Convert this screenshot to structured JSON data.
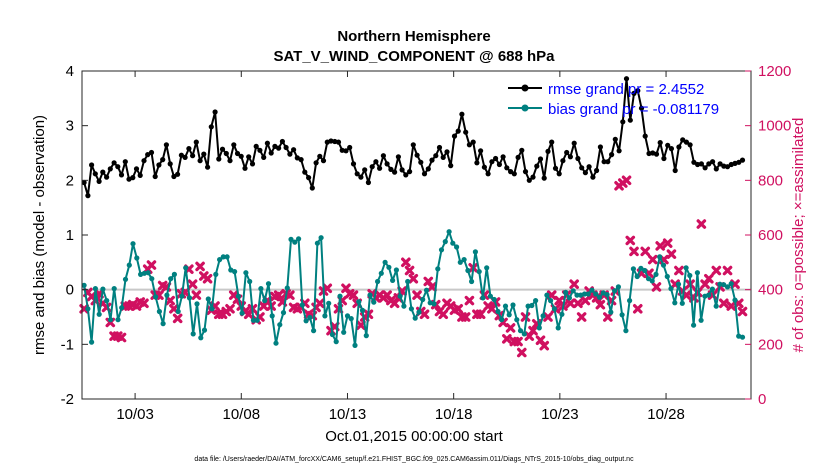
{
  "chart_data": {
    "type": "line",
    "title": "Northern Hemisphere",
    "subtitle": "SAT_V_WIND_COMPONENT @ 688 hPa",
    "xlabel": "Oct.01,2015 00:00:00 start",
    "ylabel_left": "rmse and bias (model - observation)",
    "ylabel_right": "# of obs: o=possible; ×=assimilated",
    "footer": "data file: /Users/raeder/DAI/ATM_forcXX/CAM6_setup/f.e21.FHIST_BGC.f09_025.CAM6assim.011/Diags_NTrS_2015-10/obs_diag_output.nc",
    "xlim": [
      0.5,
      32.0
    ],
    "ylim_left": [
      -2,
      4
    ],
    "ylim_right": [
      0,
      1200
    ],
    "x_ticks": [
      3,
      8,
      13,
      18,
      23,
      28
    ],
    "x_tick_labels": [
      "10/03",
      "10/08",
      "10/13",
      "10/18",
      "10/23",
      "10/28"
    ],
    "y_ticks_left": [
      -2,
      -1,
      0,
      1,
      2,
      3,
      4
    ],
    "y_ticks_right": [
      0,
      200,
      400,
      600,
      800,
      1000,
      1200
    ],
    "zero_line": 0,
    "legend": {
      "position": "top-right",
      "entries": [
        "rmse grand pr = 2.4552",
        "bias grand pr = -0.081179"
      ]
    },
    "series": [
      {
        "name": "rmse",
        "axis": "left",
        "color": "#000000",
        "marker": "circle",
        "values": [
          1.96,
          1.72,
          2.28,
          2.12,
          1.98,
          2.15,
          2.06,
          2.21,
          2.32,
          2.25,
          2.1,
          2.34,
          2.02,
          2.05,
          2.21,
          2.09,
          2.36,
          2.47,
          2.51,
          2.07,
          2.28,
          2.38,
          2.65,
          2.3,
          2.07,
          2.11,
          2.46,
          2.42,
          2.58,
          2.45,
          2.7,
          2.36,
          2.48,
          2.24,
          2.98,
          3.25,
          2.39,
          2.57,
          2.49,
          2.36,
          2.65,
          2.49,
          2.44,
          2.22,
          2.43,
          2.3,
          2.62,
          2.55,
          2.42,
          2.68,
          2.5,
          2.62,
          2.59,
          2.71,
          2.6,
          2.48,
          2.56,
          2.41,
          2.38,
          2.15,
          2.05,
          1.86,
          2.32,
          2.44,
          2.36,
          2.7,
          2.72,
          2.71,
          2.7,
          2.55,
          2.54,
          2.6,
          2.3,
          2.12,
          2.06,
          2.19,
          1.96,
          2.25,
          2.34,
          2.22,
          2.45,
          2.3,
          2.2,
          2.15,
          2.43,
          2.19,
          2.1,
          2.16,
          2.65,
          2.46,
          2.33,
          2.12,
          2.21,
          2.37,
          2.45,
          2.6,
          2.42,
          2.52,
          2.27,
          2.81,
          2.9,
          3.21,
          2.88,
          2.65,
          2.7,
          2.32,
          2.54,
          2.24,
          2.12,
          2.34,
          2.4,
          2.29,
          2.43,
          2.23,
          2.16,
          2.12,
          2.42,
          2.55,
          2.16,
          2.0,
          2.06,
          2.26,
          2.39,
          2.04,
          2.53,
          2.7,
          2.22,
          2.12,
          2.36,
          2.51,
          2.43,
          2.68,
          2.4,
          2.23,
          2.14,
          2.25,
          2.06,
          2.18,
          2.61,
          2.34,
          2.34,
          2.47,
          2.75,
          2.54,
          3.07,
          3.86,
          3.1,
          3.59,
          3.64,
          3.32,
          2.81,
          2.49,
          2.5,
          2.48,
          2.69,
          2.4,
          2.64,
          2.58,
          2.18,
          2.61,
          2.74,
          2.7,
          2.65,
          2.33,
          2.29,
          2.3,
          2.23,
          2.3,
          2.34,
          2.21,
          2.3,
          2.26,
          2.25,
          2.29,
          2.31,
          2.33,
          2.37
        ]
      },
      {
        "name": "bias",
        "axis": "left",
        "color": "#008080",
        "marker": "circle",
        "values": [
          0.08,
          -0.35,
          -0.96,
          0.02,
          -0.45,
          0.01,
          -0.2,
          -0.55,
          0.02,
          -0.55,
          -0.33,
          0.19,
          0.45,
          0.84,
          0.58,
          0.28,
          0.3,
          0.31,
          0.2,
          -0.13,
          -0.4,
          -0.62,
          -0.1,
          0.2,
          0.28,
          -0.4,
          -0.12,
          0.4,
          -0.15,
          -0.81,
          -0.26,
          -0.88,
          -0.74,
          -0.17,
          -0.35,
          0.28,
          0.55,
          0.6,
          0.6,
          0.36,
          0.33,
          -0.12,
          -0.43,
          0.31,
          0.15,
          -0.56,
          -0.56,
          0.02,
          -0.2,
          0.11,
          -0.48,
          -0.98,
          -0.64,
          -0.42,
          0.03,
          0.92,
          0.87,
          0.93,
          -0.28,
          -0.57,
          -0.51,
          -0.75,
          0.85,
          0.95,
          -0.48,
          -0.25,
          -0.82,
          -0.95,
          -0.12,
          -0.78,
          -0.48,
          -0.53,
          -1.02,
          -0.22,
          -0.38,
          -0.84,
          -0.1,
          -0.23,
          0.15,
          0.3,
          0.5,
          0.41,
          0.17,
          0.36,
          -0.12,
          -0.3,
          0.15,
          -0.35,
          -0.52,
          -0.41,
          -0.18,
          -0.01,
          -0.24,
          -0.26,
          0.38,
          0.73,
          0.88,
          1.06,
          0.85,
          0.78,
          0.5,
          0.55,
          0.35,
          0.15,
          0.69,
          0.33,
          -0.15,
          0.4,
          -0.12,
          -0.18,
          -0.4,
          -0.55,
          -0.3,
          -0.46,
          -0.28,
          -0.55,
          -0.75,
          -0.81,
          -0.3,
          -0.29,
          -0.2,
          -0.7,
          -0.48,
          -0.1,
          -0.2,
          -0.35,
          -0.7,
          -0.45,
          -0.05,
          -0.15,
          -0.02,
          -0.1,
          -0.1,
          -0.08,
          -0.08,
          -0.01,
          -0.08,
          -0.14,
          -0.06,
          -0.09,
          -0.41,
          -0.02,
          0.05,
          -0.46,
          -0.75,
          -0.2,
          0.38,
          0.24,
          0.39,
          0.35,
          0.2,
          0.16,
          0.28,
          0.6,
          0.45,
          0.24,
          0.02,
          -0.24,
          0.1,
          -0.25,
          0.4,
          0.26,
          -0.65,
          0.31,
          -0.56,
          -0.12,
          -0.1,
          0.01,
          -0.3,
          0.1,
          0.09,
          0.05,
          0.11,
          -0.19,
          -0.85,
          -0.87
        ]
      },
      {
        "name": "obs assimilated",
        "axis": "right",
        "color": "#d01060",
        "marker": "x",
        "values": [
          330,
          390,
          375,
          360,
          385,
          350,
          335,
          280,
          230,
          230,
          225,
          340,
          340,
          345,
          340,
          355,
          350,
          475,
          490,
          380,
          380,
          415,
          410,
          360,
          330,
          295,
          385,
          390,
          475,
          420,
          380,
          485,
          450,
          440,
          325,
          340,
          310,
          310,
          320,
          330,
          380,
          365,
          340,
          320,
          310,
          330,
          290,
          300,
          340,
          360,
          340,
          375,
          380,
          355,
          385,
          380,
          335,
          330,
          335,
          350,
          310,
          305,
          335,
          350,
          395,
          405,
          250,
          265,
          330,
          360,
          405,
          385,
          380,
          350,
          270,
          300,
          310,
          385,
          370,
          380,
          370,
          380,
          360,
          350,
          370,
          395,
          500,
          470,
          440,
          380,
          320,
          310,
          430,
          410,
          345,
          320,
          310,
          350,
          340,
          325,
          330,
          300,
          300,
          360,
          480,
          310,
          310,
          380,
          340,
          330,
          355,
          305,
          280,
          220,
          260,
          210,
          210,
          170,
          300,
          230,
          250,
          275,
          215,
          195,
          300,
          380,
          330,
          360,
          340,
          380,
          350,
          420,
          350,
          300,
          360,
          395,
          380,
          370,
          345,
          380,
          300,
          360,
          395,
          780,
          790,
          800,
          580,
          540,
          330,
          460,
          540,
          460,
          510,
          410,
          560,
          510,
          570,
          530,
          420,
          470,
          395,
          380,
          420,
          370,
          390,
          640,
          420,
          440,
          380,
          470,
          410,
          350,
          470,
          340,
          420,
          350,
          320
        ]
      }
    ]
  }
}
